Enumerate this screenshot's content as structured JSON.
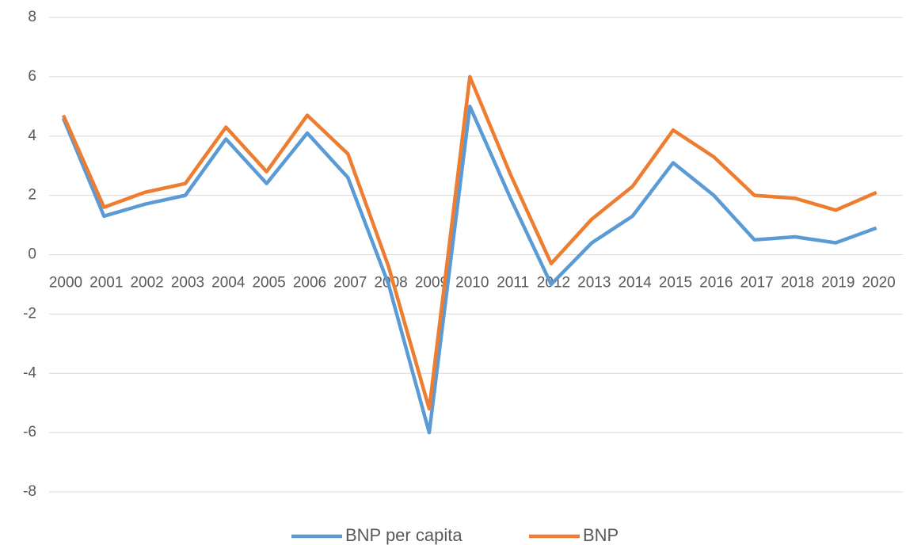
{
  "chart_data": {
    "type": "line",
    "categories": [
      "2000",
      "2001",
      "2002",
      "2003",
      "2004",
      "2005",
      "2006",
      "2007",
      "2008",
      "2009",
      "2010",
      "2011",
      "2012",
      "2013",
      "2014",
      "2015",
      "2016",
      "2017",
      "2018",
      "2019",
      "2020"
    ],
    "series": [
      {
        "name": "BNP per capita",
        "color": "#5b9bd5",
        "values": [
          4.6,
          1.3,
          1.7,
          2.0,
          3.9,
          2.4,
          4.1,
          2.6,
          -1.0,
          -6.0,
          5.0,
          1.9,
          -1.0,
          0.4,
          1.3,
          3.1,
          2.0,
          0.5,
          0.6,
          0.4,
          0.9
        ]
      },
      {
        "name": "BNP",
        "color": "#ed7d31",
        "values": [
          4.7,
          1.6,
          2.1,
          2.4,
          4.3,
          2.8,
          4.7,
          3.4,
          -0.4,
          -5.2,
          6.0,
          2.7,
          -0.3,
          1.2,
          2.3,
          4.2,
          3.3,
          2.0,
          1.9,
          1.5,
          2.1
        ]
      }
    ],
    "ylim": [
      -8,
      8
    ],
    "yticks": [
      -8,
      -6,
      -4,
      -2,
      0,
      2,
      4,
      6,
      8
    ],
    "grid": true,
    "legend": "bottom"
  }
}
